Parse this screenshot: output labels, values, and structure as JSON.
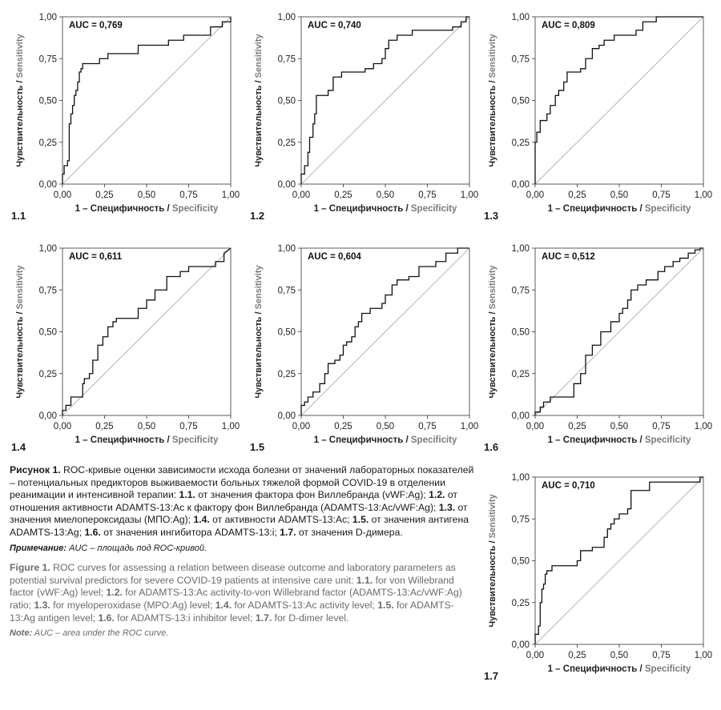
{
  "axis": {
    "y_ru": "Чувствительность",
    "y_sep": " / ",
    "y_en": "Sensitivity",
    "x_ru": "1 – Специфичность",
    "x_sep": " / ",
    "x_en": "Specificity",
    "ticks": [
      "0,00",
      "0,25",
      "0,50",
      "0,75",
      "1,00"
    ]
  },
  "chart_data": [
    {
      "type": "line",
      "id": "1.1",
      "auc": "AUC = 0,769",
      "xlim": [
        0,
        1
      ],
      "ylim": [
        0,
        1
      ],
      "x": [
        0.0,
        0.0,
        0.01,
        0.01,
        0.03,
        0.03,
        0.04,
        0.04,
        0.05,
        0.05,
        0.06,
        0.06,
        0.07,
        0.07,
        0.08,
        0.08,
        0.09,
        0.09,
        0.1,
        0.1,
        0.11,
        0.11,
        0.12,
        0.12,
        0.13,
        0.13,
        0.14,
        0.14,
        0.22,
        0.22,
        0.27,
        0.27,
        0.33,
        0.33,
        0.45,
        0.45,
        0.63,
        0.63,
        0.72,
        0.72,
        0.88,
        0.88,
        0.95,
        0.95,
        1.0,
        1.0
      ],
      "y": [
        0.0,
        0.06,
        0.06,
        0.11,
        0.11,
        0.14,
        0.14,
        0.36,
        0.36,
        0.42,
        0.42,
        0.47,
        0.47,
        0.53,
        0.53,
        0.56,
        0.56,
        0.61,
        0.61,
        0.67,
        0.67,
        0.69,
        0.69,
        0.72,
        0.72,
        0.72,
        0.72,
        0.72,
        0.72,
        0.75,
        0.75,
        0.78,
        0.78,
        0.78,
        0.78,
        0.83,
        0.83,
        0.86,
        0.86,
        0.89,
        0.89,
        0.94,
        0.94,
        0.97,
        0.97,
        1.0
      ]
    },
    {
      "type": "line",
      "id": "1.2",
      "auc": "AUC = 0,740",
      "xlim": [
        0,
        1
      ],
      "ylim": [
        0,
        1
      ],
      "x": [
        0.0,
        0.0,
        0.02,
        0.02,
        0.04,
        0.04,
        0.05,
        0.05,
        0.07,
        0.07,
        0.08,
        0.08,
        0.09,
        0.09,
        0.11,
        0.11,
        0.16,
        0.16,
        0.19,
        0.19,
        0.24,
        0.24,
        0.38,
        0.38,
        0.43,
        0.43,
        0.48,
        0.48,
        0.5,
        0.5,
        0.52,
        0.52,
        0.57,
        0.57,
        0.66,
        0.66,
        0.9,
        0.9,
        0.95,
        0.95,
        0.98,
        0.98,
        1.0
      ],
      "y": [
        0.0,
        0.06,
        0.06,
        0.11,
        0.11,
        0.19,
        0.19,
        0.28,
        0.28,
        0.36,
        0.36,
        0.42,
        0.42,
        0.53,
        0.53,
        0.53,
        0.53,
        0.56,
        0.56,
        0.64,
        0.64,
        0.67,
        0.67,
        0.69,
        0.69,
        0.72,
        0.72,
        0.75,
        0.75,
        0.81,
        0.81,
        0.86,
        0.86,
        0.89,
        0.89,
        0.92,
        0.92,
        0.94,
        0.94,
        0.97,
        0.97,
        1.0,
        1.0
      ]
    },
    {
      "type": "line",
      "id": "1.3",
      "auc": "AUC = 0,809",
      "xlim": [
        0,
        1
      ],
      "ylim": [
        0,
        1
      ],
      "x": [
        0.0,
        0.0,
        0.01,
        0.01,
        0.03,
        0.03,
        0.04,
        0.04,
        0.07,
        0.07,
        0.09,
        0.09,
        0.12,
        0.12,
        0.14,
        0.14,
        0.17,
        0.17,
        0.19,
        0.19,
        0.27,
        0.27,
        0.3,
        0.3,
        0.34,
        0.34,
        0.38,
        0.38,
        0.41,
        0.41,
        0.43,
        0.43,
        0.47,
        0.47,
        0.6,
        0.6,
        0.64,
        0.64,
        0.72,
        0.72,
        1.0
      ],
      "y": [
        0.0,
        0.25,
        0.25,
        0.31,
        0.31,
        0.38,
        0.38,
        0.38,
        0.38,
        0.42,
        0.42,
        0.47,
        0.47,
        0.53,
        0.53,
        0.56,
        0.56,
        0.61,
        0.61,
        0.67,
        0.67,
        0.69,
        0.69,
        0.75,
        0.75,
        0.81,
        0.81,
        0.83,
        0.83,
        0.86,
        0.86,
        0.86,
        0.86,
        0.89,
        0.89,
        0.92,
        0.92,
        0.97,
        0.97,
        1.0,
        1.0
      ]
    },
    {
      "type": "line",
      "id": "1.4",
      "auc": "AUC = 0,611",
      "xlim": [
        0,
        1
      ],
      "ylim": [
        0,
        1
      ],
      "x": [
        0.0,
        0.0,
        0.02,
        0.02,
        0.05,
        0.05,
        0.09,
        0.09,
        0.12,
        0.12,
        0.13,
        0.13,
        0.16,
        0.16,
        0.18,
        0.18,
        0.21,
        0.21,
        0.24,
        0.24,
        0.27,
        0.27,
        0.3,
        0.3,
        0.32,
        0.32,
        0.45,
        0.45,
        0.5,
        0.5,
        0.55,
        0.55,
        0.62,
        0.62,
        0.7,
        0.7,
        0.75,
        0.75,
        0.91,
        0.91,
        0.96,
        0.96,
        1.0
      ],
      "y": [
        0.0,
        0.03,
        0.03,
        0.06,
        0.06,
        0.11,
        0.11,
        0.11,
        0.11,
        0.19,
        0.19,
        0.22,
        0.22,
        0.25,
        0.25,
        0.33,
        0.33,
        0.42,
        0.42,
        0.47,
        0.47,
        0.53,
        0.53,
        0.56,
        0.56,
        0.58,
        0.58,
        0.64,
        0.64,
        0.69,
        0.69,
        0.75,
        0.75,
        0.83,
        0.83,
        0.86,
        0.86,
        0.89,
        0.89,
        0.92,
        0.92,
        0.97,
        1.0
      ]
    },
    {
      "type": "line",
      "id": "1.5",
      "auc": "AUC = 0,604",
      "xlim": [
        0,
        1
      ],
      "ylim": [
        0,
        1
      ],
      "x": [
        0.0,
        0.0,
        0.02,
        0.02,
        0.04,
        0.04,
        0.07,
        0.07,
        0.11,
        0.11,
        0.14,
        0.14,
        0.16,
        0.16,
        0.2,
        0.2,
        0.23,
        0.23,
        0.25,
        0.25,
        0.27,
        0.27,
        0.3,
        0.3,
        0.32,
        0.32,
        0.34,
        0.34,
        0.36,
        0.36,
        0.41,
        0.41,
        0.48,
        0.48,
        0.5,
        0.5,
        0.54,
        0.54,
        0.57,
        0.57,
        0.59,
        0.59,
        0.64,
        0.64,
        0.7,
        0.7,
        0.8,
        0.8,
        0.86,
        0.86,
        0.93,
        0.93,
        1.0
      ],
      "y": [
        0.0,
        0.06,
        0.06,
        0.08,
        0.08,
        0.11,
        0.11,
        0.14,
        0.14,
        0.19,
        0.19,
        0.25,
        0.25,
        0.31,
        0.31,
        0.33,
        0.33,
        0.36,
        0.36,
        0.42,
        0.42,
        0.44,
        0.44,
        0.47,
        0.47,
        0.53,
        0.53,
        0.56,
        0.56,
        0.61,
        0.61,
        0.64,
        0.64,
        0.67,
        0.67,
        0.72,
        0.72,
        0.78,
        0.78,
        0.81,
        0.81,
        0.81,
        0.81,
        0.83,
        0.83,
        0.89,
        0.89,
        0.92,
        0.92,
        0.97,
        0.97,
        1.0,
        1.0
      ]
    },
    {
      "type": "line",
      "id": "1.6",
      "auc": "AUC = 0,512",
      "xlim": [
        0,
        1
      ],
      "ylim": [
        0,
        1
      ],
      "x": [
        0.0,
        0.0,
        0.03,
        0.03,
        0.05,
        0.05,
        0.07,
        0.07,
        0.09,
        0.09,
        0.23,
        0.23,
        0.27,
        0.27,
        0.3,
        0.3,
        0.34,
        0.34,
        0.39,
        0.39,
        0.45,
        0.45,
        0.5,
        0.5,
        0.52,
        0.52,
        0.55,
        0.55,
        0.57,
        0.57,
        0.61,
        0.61,
        0.66,
        0.66,
        0.73,
        0.73,
        0.77,
        0.77,
        0.82,
        0.82,
        0.86,
        0.86,
        0.91,
        0.91,
        0.95,
        0.95,
        0.98,
        0.98,
        1.0
      ],
      "y": [
        0.0,
        0.02,
        0.02,
        0.05,
        0.05,
        0.08,
        0.08,
        0.08,
        0.08,
        0.11,
        0.11,
        0.19,
        0.19,
        0.25,
        0.25,
        0.36,
        0.36,
        0.42,
        0.42,
        0.5,
        0.5,
        0.56,
        0.56,
        0.61,
        0.61,
        0.64,
        0.64,
        0.69,
        0.69,
        0.75,
        0.75,
        0.78,
        0.78,
        0.81,
        0.81,
        0.86,
        0.86,
        0.89,
        0.89,
        0.92,
        0.92,
        0.94,
        0.94,
        0.97,
        0.97,
        0.99,
        0.99,
        1.0,
        1.0
      ]
    },
    {
      "type": "line",
      "id": "1.7",
      "auc": "AUC = 0,710",
      "xlim": [
        0,
        1
      ],
      "ylim": [
        0,
        1
      ],
      "x": [
        0.0,
        0.0,
        0.02,
        0.02,
        0.03,
        0.03,
        0.04,
        0.04,
        0.05,
        0.05,
        0.06,
        0.06,
        0.07,
        0.07,
        0.1,
        0.1,
        0.14,
        0.14,
        0.25,
        0.25,
        0.27,
        0.27,
        0.34,
        0.34,
        0.41,
        0.41,
        0.43,
        0.43,
        0.45,
        0.45,
        0.47,
        0.47,
        0.5,
        0.5,
        0.55,
        0.55,
        0.57,
        0.57,
        0.68,
        0.68,
        0.98,
        0.98,
        1.0
      ],
      "y": [
        0.0,
        0.06,
        0.06,
        0.11,
        0.11,
        0.25,
        0.25,
        0.33,
        0.33,
        0.36,
        0.36,
        0.42,
        0.42,
        0.44,
        0.44,
        0.47,
        0.47,
        0.47,
        0.47,
        0.5,
        0.5,
        0.56,
        0.56,
        0.58,
        0.58,
        0.64,
        0.64,
        0.69,
        0.69,
        0.72,
        0.72,
        0.75,
        0.75,
        0.78,
        0.78,
        0.81,
        0.81,
        0.92,
        0.92,
        0.97,
        0.97,
        1.0,
        1.0
      ]
    }
  ],
  "caption": {
    "ru_fig": "Рисунок 1.",
    "ru_intro": " ROC-кривые оценки зависимости исхода болезни от значений лабораторных показателей – потенциальных предикторов выживаемости больных тяжелой формой COVID-19 в отделении реанимации и интенсивной терапии: ",
    "ru_k1": "1.1.",
    "ru_t1": " от значения фактора фон Виллебранда (vWF:Ag); ",
    "ru_k2": "1.2.",
    "ru_t2": " от отношения активности ADAMTS-13:Ac к фактору фон Виллебранда (ADAMTS-13:Ac/vWF:Ag); ",
    "ru_k3": "1.3.",
    "ru_t3": " от значения миелопероксидазы (МПО:Ag); ",
    "ru_k4": "1.4.",
    "ru_t4": " от активности ADAMTS-13:Ac; ",
    "ru_k5": "1.5.",
    "ru_t5": " от значения антигена ADAMTS-13:Ag; ",
    "ru_k6": "1.6.",
    "ru_t6": " от значения ингибитора ADAMTS-13:i; ",
    "ru_k7": "1.7.",
    "ru_t7": " от значения D-димера.",
    "ru_note_k": "Примечание:",
    "ru_note_t": " AUC – площадь под ROC-кривой.",
    "en_fig": "Figure 1.",
    "en_intro": " ROC curves for assessing a relation between disease outcome and laboratory parameters as potential survival predictors for severe COVID-19 patients at intensive care unit: ",
    "en_k1": "1.1.",
    "en_t1": " for von Willebrand factor (vWF:Ag) level; ",
    "en_k2": "1.2.",
    "en_t2": " for ADAMTS-13:Ac activity-to-von Willebrand factor (ADAMTS-13:Ac/vWF:Ag) ratio; ",
    "en_k3": "1.3.",
    "en_t3": " for myeloperoxidase (MPO:Ag) level; ",
    "en_k4": "1.4.",
    "en_t4": " for ADAMTS-13:Ac activity level; ",
    "en_k5": "1.5.",
    "en_t5": " for ADAMTS-13:Ag antigen level; ",
    "en_k6": "1.6.",
    "en_t6": " for ADAMTS-13:i inhibitor level; ",
    "en_k7": "1.7.",
    "en_t7": " for D-dimer level.",
    "en_note_k": "Note:",
    "en_note_t": " AUC – area under the ROC curve."
  }
}
